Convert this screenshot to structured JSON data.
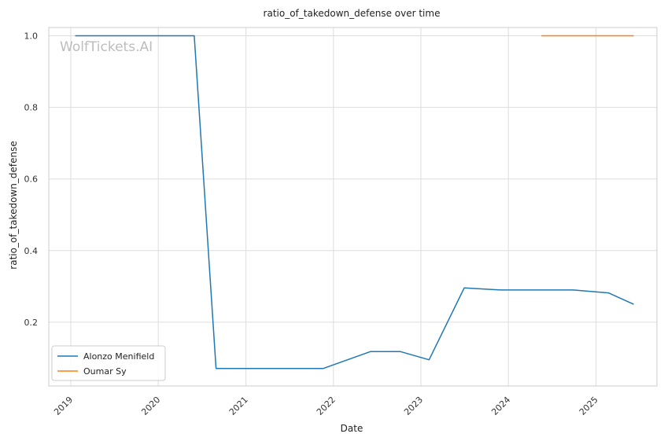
{
  "chart_data": {
    "type": "line",
    "title": "ratio_of_takedown_defense over time",
    "xlabel": "Date",
    "ylabel": "ratio_of_takedown_defense",
    "watermark": "WolfTickets.AI",
    "x_axis": {
      "range": [
        "2018-10-01",
        "2025-09-12"
      ],
      "ticks": [
        "2019-01-01",
        "2020-01-01",
        "2021-01-01",
        "2022-01-01",
        "2023-01-01",
        "2024-01-01",
        "2025-01-01"
      ],
      "tick_labels": [
        "2019",
        "2020",
        "2021",
        "2022",
        "2023",
        "2024",
        "2025"
      ]
    },
    "y_axis": {
      "range": [
        0.022,
        1.023
      ],
      "ticks": [
        0.2,
        0.4,
        0.6,
        0.8,
        1.0
      ],
      "tick_labels": [
        "0.2",
        "0.4",
        "0.6",
        "0.8",
        "1.0"
      ]
    },
    "grid": true,
    "legend_position": "lower-left",
    "series": [
      {
        "name": "Alonzo Menifield",
        "color": "#1f77b4",
        "points": [
          {
            "x": "2019-01-19",
            "y": 1.0
          },
          {
            "x": "2020-05-30",
            "y": 1.0
          },
          {
            "x": "2020-08-29",
            "y": 0.071
          },
          {
            "x": "2021-11-20",
            "y": 0.071
          },
          {
            "x": "2022-06-04",
            "y": 0.118
          },
          {
            "x": "2022-10-08",
            "y": 0.118
          },
          {
            "x": "2023-02-04",
            "y": 0.095
          },
          {
            "x": "2023-07-01",
            "y": 0.296
          },
          {
            "x": "2023-12-01",
            "y": 0.29
          },
          {
            "x": "2024-09-28",
            "y": 0.29
          },
          {
            "x": "2025-02-22",
            "y": 0.282
          },
          {
            "x": "2025-06-07",
            "y": 0.25
          }
        ]
      },
      {
        "name": "Oumar Sy",
        "color": "#ff7f0e",
        "points": [
          {
            "x": "2024-05-18",
            "y": 1.0
          },
          {
            "x": "2025-06-07",
            "y": 1.0
          }
        ]
      }
    ]
  }
}
